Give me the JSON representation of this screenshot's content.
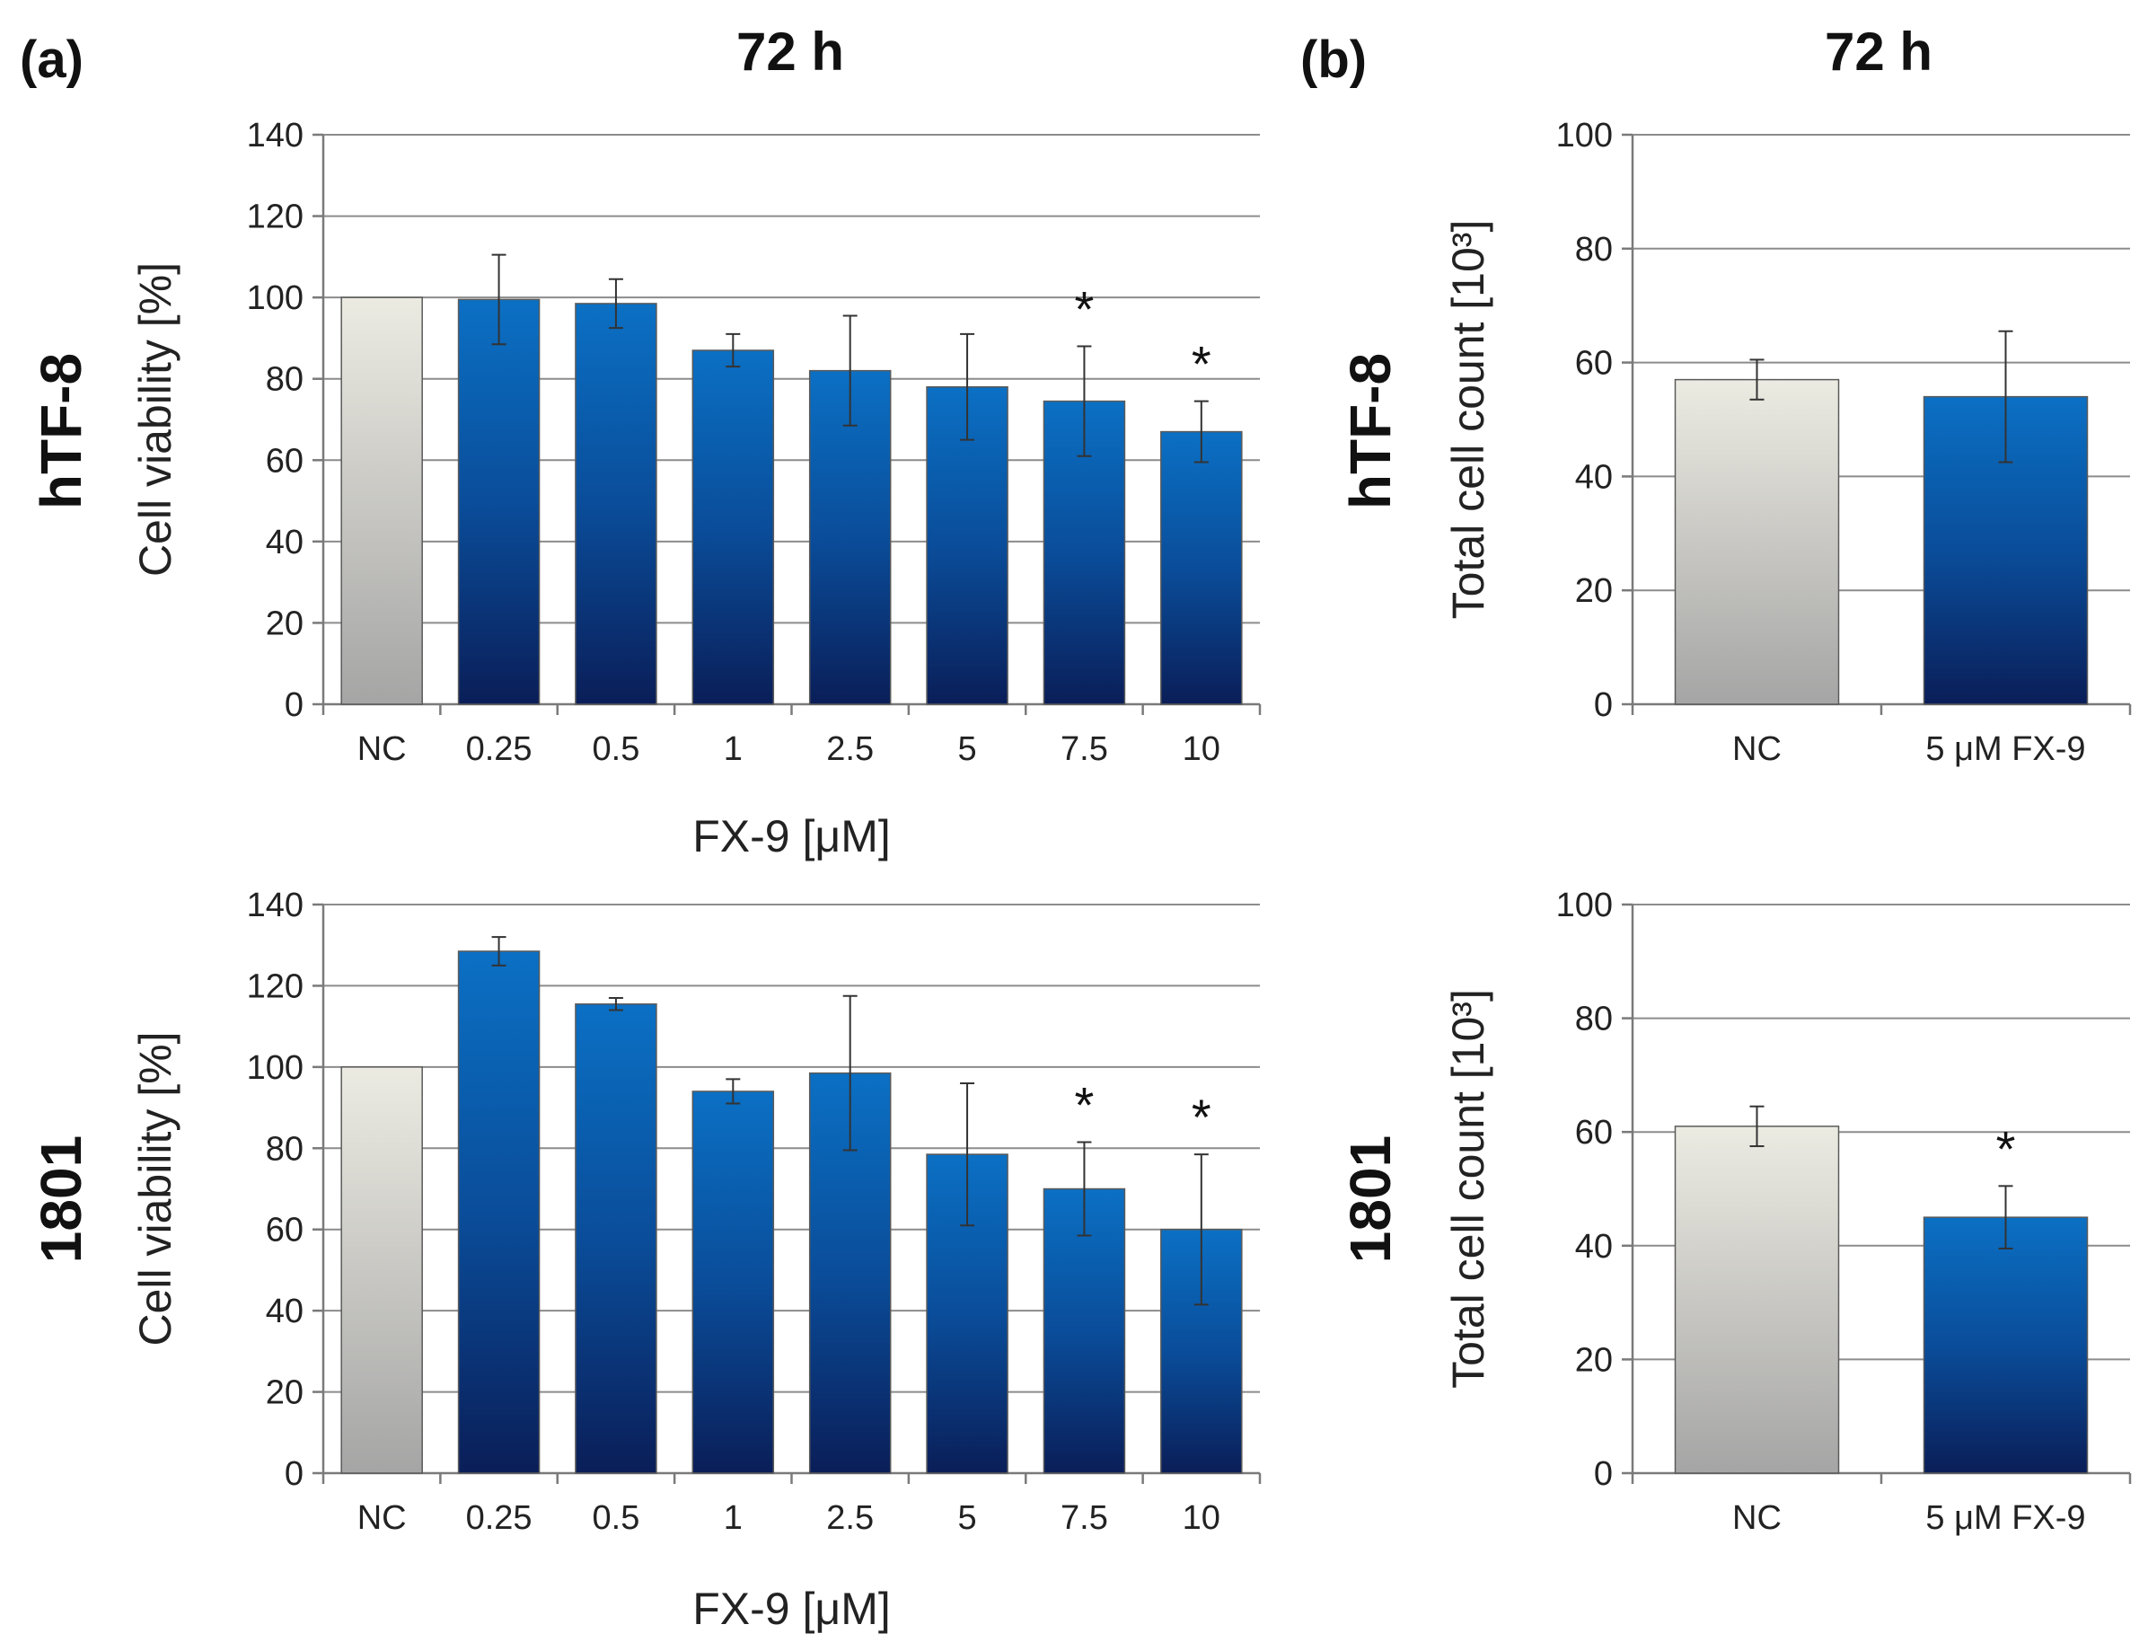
{
  "figure": {
    "panel_labels": [
      "(a)",
      "(b)"
    ],
    "titles": [
      "72 h",
      "72 h"
    ],
    "row_labels": [
      "hTF-8",
      "1801"
    ]
  },
  "colors": {
    "nc_top": "#ecebe2",
    "nc_bottom": "#a5a5a5",
    "treat_top": "#0b70c4",
    "treat_bottom": "#0a1e58",
    "grid": "#8c8c8c"
  },
  "chart_data": [
    {
      "id": "a-htf8",
      "type": "bar",
      "panel": "(a)",
      "row": "hTF-8",
      "categories": [
        "NC",
        "0.25",
        "0.5",
        "1",
        "2.5",
        "5",
        "7.5",
        "10"
      ],
      "values": [
        100,
        99.5,
        98.5,
        87,
        82,
        78,
        74.5,
        67
      ],
      "errors": [
        0,
        11,
        6,
        4,
        13.5,
        13,
        13.5,
        7.5
      ],
      "significant": [
        false,
        false,
        false,
        false,
        false,
        false,
        true,
        true
      ],
      "xlabel": "FX-9 [μM]",
      "ylabel": "Cell viability [%]",
      "ylim": [
        0,
        140
      ],
      "yticks": [
        0,
        20,
        40,
        60,
        80,
        100,
        120,
        140
      ],
      "grid": true
    },
    {
      "id": "a-1801",
      "type": "bar",
      "panel": "(a)",
      "row": "1801",
      "categories": [
        "NC",
        "0.25",
        "0.5",
        "1",
        "2.5",
        "5",
        "7.5",
        "10"
      ],
      "values": [
        100,
        128.5,
        115.5,
        94,
        98.5,
        78.5,
        70,
        60
      ],
      "errors": [
        0,
        3.5,
        1.5,
        3,
        19,
        17.5,
        11.5,
        18.5
      ],
      "significant": [
        false,
        false,
        false,
        false,
        false,
        false,
        true,
        true
      ],
      "xlabel": "FX-9 [μM]",
      "ylabel": "Cell viability [%]",
      "ylim": [
        0,
        140
      ],
      "yticks": [
        0,
        20,
        40,
        60,
        80,
        100,
        120,
        140
      ],
      "grid": true
    },
    {
      "id": "b-htf8",
      "type": "bar",
      "panel": "(b)",
      "row": "hTF-8",
      "categories": [
        "NC",
        "5 μM FX-9"
      ],
      "values": [
        57,
        54
      ],
      "errors": [
        3.5,
        11.5
      ],
      "significant": [
        false,
        false
      ],
      "xlabel": "",
      "ylabel": "Total cell count [10³]",
      "ylim": [
        0,
        100
      ],
      "yticks": [
        0,
        20,
        40,
        60,
        80,
        100
      ],
      "grid": true
    },
    {
      "id": "b-1801",
      "type": "bar",
      "panel": "(b)",
      "row": "1801",
      "categories": [
        "NC",
        "5 μM FX-9"
      ],
      "values": [
        61,
        45
      ],
      "errors": [
        3.5,
        5.5
      ],
      "significant": [
        false,
        true
      ],
      "xlabel": "",
      "ylabel": "Total cell count [10³]",
      "ylim": [
        0,
        100
      ],
      "yticks": [
        0,
        20,
        40,
        60,
        80,
        100
      ],
      "grid": true
    }
  ]
}
